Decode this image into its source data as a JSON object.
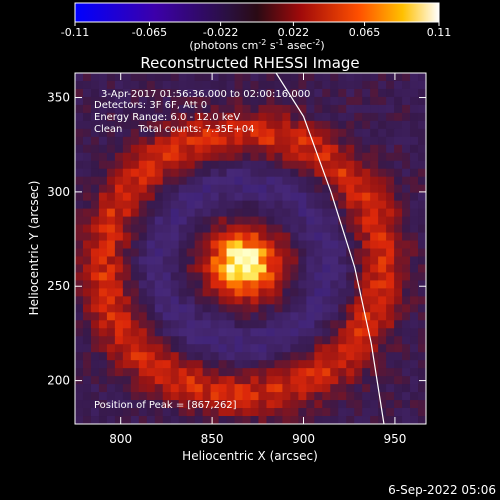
{
  "colorbar": {
    "ticks": [
      "-0.11",
      "-0.065",
      "-0.022",
      "0.022",
      "0.065",
      "0.11"
    ],
    "min": -0.11,
    "max": 0.11,
    "unit_prefix": "(photons cm",
    "unit_exp1": "-2",
    "unit_mid": " s",
    "unit_exp2": "-1",
    "unit_mid2": " asec",
    "unit_exp3": "-2",
    "unit_suffix": ")",
    "colors": [
      "#1a00ff",
      "#4b0082",
      "#3a1f6b",
      "#b01010",
      "#ff7000",
      "#ffff80",
      "#ffffff"
    ]
  },
  "chart_data": {
    "type": "heatmap",
    "title": "Reconstructed RHESSI Image",
    "xlabel": "Heliocentric X (arcsec)",
    "ylabel": "Heliocentric Y (arcsec)",
    "xlim": [
      775,
      967
    ],
    "ylim": [
      177,
      363
    ],
    "x_ticks": [
      800,
      850,
      900,
      950
    ],
    "y_ticks": [
      200,
      250,
      300,
      350
    ],
    "peak": [
      867,
      262
    ],
    "annotations": [
      "3-Apr-2017 01:56:36.000 to 02:00:16.000",
      "Detectors: 3F 6F, Att 0",
      "Energy Range: 6.0 - 12.0 keV",
      "Clean     Total counts: 7.35E+04"
    ],
    "peak_label": "Position of Peak = [867,262]",
    "limb": [
      [
        885,
        363
      ],
      [
        900,
        340
      ],
      [
        915,
        300
      ],
      [
        928,
        260
      ],
      [
        937,
        220
      ],
      [
        944,
        177
      ]
    ]
  },
  "timestamp": "6-Sep-2022 05:06"
}
